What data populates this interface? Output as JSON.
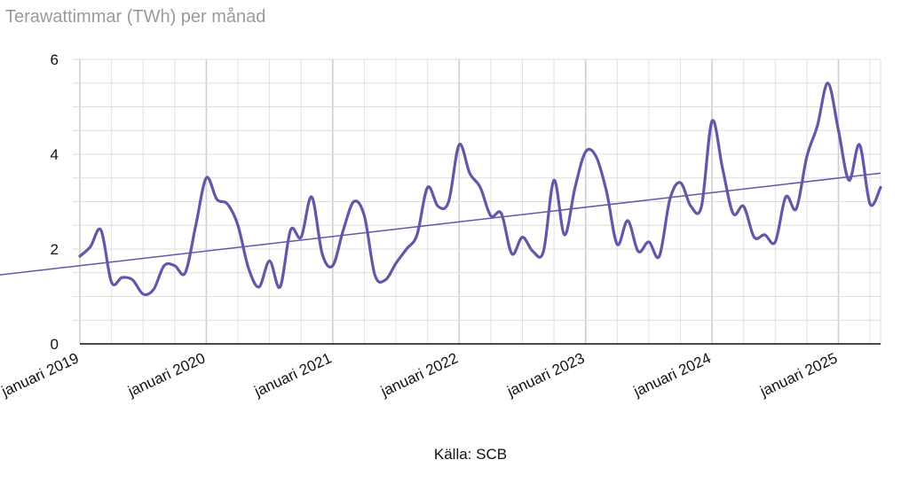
{
  "chart_data": {
    "type": "line",
    "title": "",
    "ylabel": "Terawattimmar (TWh) per månad",
    "xlabel": "",
    "source": "Källa: SCB",
    "ylim": [
      0,
      6
    ],
    "yticks": [
      "0",
      "2",
      "4",
      "6"
    ],
    "xticks": [
      "januari 2019",
      "januari 2020",
      "januari 2021",
      "januari 2022",
      "januari 2023",
      "januari 2024",
      "januari 2025"
    ],
    "grid": true,
    "colors": {
      "line": "#6655a8",
      "trend": "#6655a8",
      "grid": "#dddddd",
      "axis": "#111111"
    },
    "x_start": "2019-01",
    "values": [
      1.85,
      2.05,
      2.4,
      1.3,
      1.4,
      1.35,
      1.05,
      1.15,
      1.65,
      1.65,
      1.5,
      2.5,
      3.5,
      3.05,
      2.95,
      2.5,
      1.6,
      1.2,
      1.75,
      1.2,
      2.4,
      2.25,
      3.1,
      1.9,
      1.65,
      2.4,
      3.0,
      2.7,
      1.45,
      1.35,
      1.7,
      2.0,
      2.3,
      3.3,
      2.9,
      3.0,
      4.2,
      3.6,
      3.3,
      2.7,
      2.75,
      1.9,
      2.25,
      1.95,
      1.95,
      3.45,
      2.3,
      3.3,
      4.05,
      3.95,
      3.2,
      2.1,
      2.6,
      1.95,
      2.15,
      1.85,
      3.05,
      3.4,
      2.9,
      2.9,
      4.7,
      3.7,
      2.75,
      2.9,
      2.25,
      2.3,
      2.15,
      3.1,
      2.85,
      3.95,
      4.6,
      5.5,
      4.5,
      3.45,
      4.2,
      2.95,
      3.3
    ],
    "trend": {
      "start": 1.65,
      "end": 3.6
    }
  }
}
